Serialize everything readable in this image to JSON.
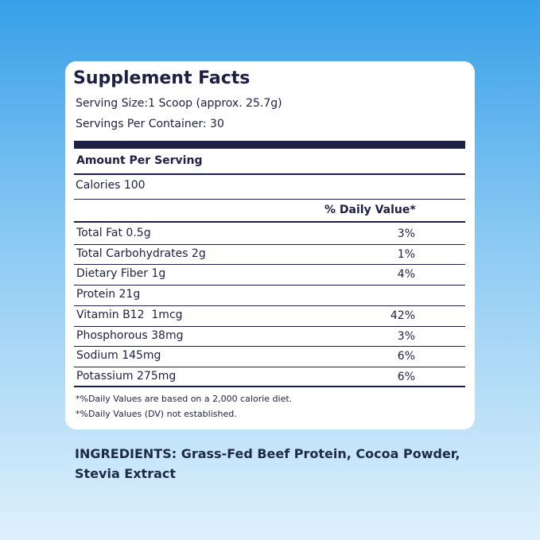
{
  "panel": {
    "title": "Supplement Facts",
    "serving_size": "Serving Size:1 Scoop (approx. 25.7g)",
    "servings_per_container": "Servings Per Container: 30",
    "amount_per_serving": "Amount Per Serving",
    "calories": "Calories 100",
    "daily_value_header": "% Daily Value*",
    "rows": [
      {
        "nutrient": "Total Fat 0.5g",
        "daily_value": "3%"
      },
      {
        "nutrient": "Total Carbohydrates 2g",
        "daily_value": "1%"
      },
      {
        "nutrient": "Dietary Fiber 1g",
        "daily_value": "4%"
      },
      {
        "nutrient": "Protein 21g"
      },
      {
        "nutrient": "Vitamin B12  1mcg",
        "daily_value": "42%"
      },
      {
        "nutrient": "Phosphorous 38mg",
        "daily_value": "3%"
      },
      {
        "nutrient": "Sodium 145mg",
        "daily_value": "6%"
      },
      {
        "nutrient": "Potassium 275mg",
        "daily_value": "6%"
      }
    ],
    "footnotes": [
      "*%Daily Values are based on a 2,000 calorie diet.",
      "*%Daily Values (DV) not established."
    ]
  },
  "ingredients": [
    "INGREDIENTS: Grass-Fed Beef Protein, Cocoa Powder,",
    "Stevia Extract"
  ]
}
